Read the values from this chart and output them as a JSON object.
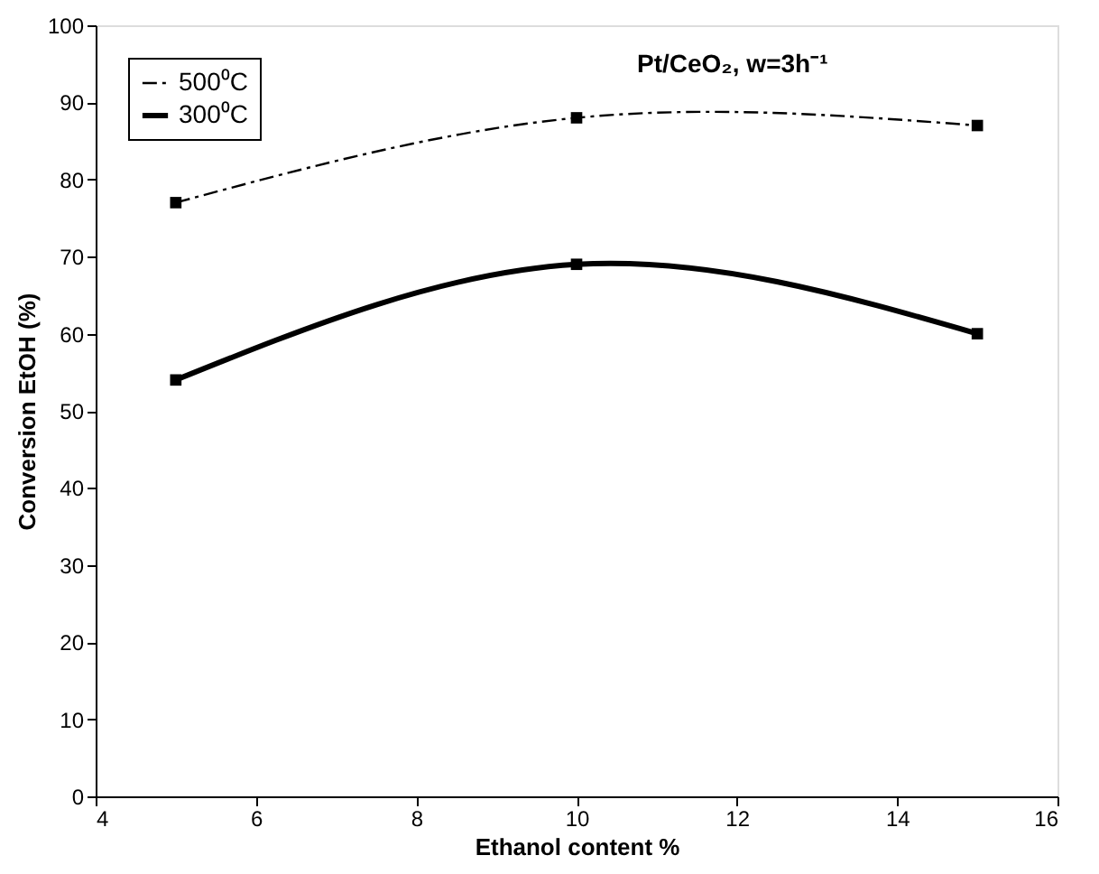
{
  "chart_data": {
    "type": "line",
    "xlabel": "Ethanol content %",
    "ylabel": "Conversion EtOH (%)",
    "annotations": [
      "Pt/CeO₂, w=3h⁻¹"
    ],
    "x": [
      5,
      10,
      15
    ],
    "series": [
      {
        "name": "500⁰C",
        "color": "#000000",
        "values": [
          77,
          88,
          87
        ],
        "line_style": "dashed"
      },
      {
        "name": "300⁰C",
        "color": "#000000",
        "values": [
          54,
          69,
          60
        ],
        "line_style": "solid"
      }
    ],
    "xlim": [
      4,
      16
    ],
    "xticks": [
      4,
      6,
      8,
      10,
      12,
      14,
      16
    ],
    "ylim": [
      0,
      100
    ],
    "yticks": [
      0,
      10,
      20,
      30,
      40,
      50,
      60,
      70,
      80,
      90,
      100
    ],
    "grid": false,
    "legend": "top left",
    "marker": "square"
  }
}
